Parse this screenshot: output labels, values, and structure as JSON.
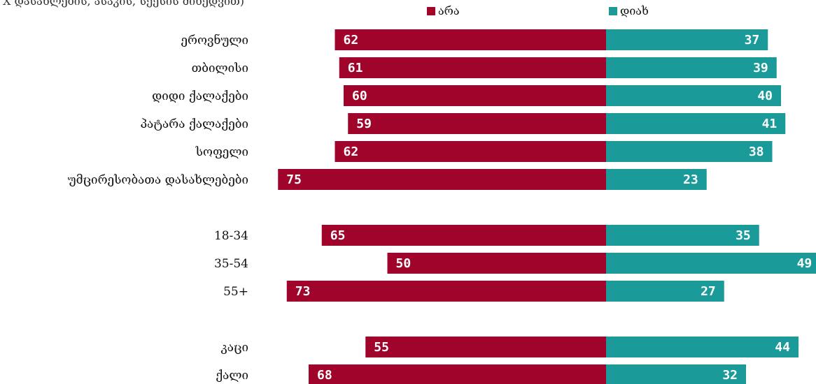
{
  "subtitle": "X დასახლების, ასაკის, სქესის მიხედვით)",
  "legend": {
    "no_label": "არა",
    "yes_label": "დიახ",
    "no_color": "#a0042a",
    "yes_color": "#1a9b9a"
  },
  "chart_data": {
    "type": "bar",
    "orientation": "horizontal-diverging",
    "categories": [
      "ეროვნული",
      "თბილისი",
      "დიდი ქალაქები",
      "პატარა ქალაქები",
      "სოფელი",
      "უმცირესობათა დასახლებები",
      "18-34",
      "35-54",
      "55+",
      "კაცი",
      "ქალი"
    ],
    "series": [
      {
        "name": "არა",
        "values": [
          62,
          61,
          60,
          59,
          62,
          75,
          65,
          50,
          73,
          55,
          68
        ]
      },
      {
        "name": "დიახ",
        "values": [
          37,
          39,
          40,
          41,
          38,
          23,
          35,
          49,
          27,
          44,
          32
        ]
      }
    ],
    "groups": [
      [
        "ეროვნული",
        "თბილისი",
        "დიდი ქალაქები",
        "პატარა ქალაქები",
        "სოფელი",
        "უმცირესობათა დასახლებები"
      ],
      [
        "18-34",
        "35-54",
        "55+"
      ],
      [
        "კაცი",
        "ქალი"
      ]
    ],
    "legend_position": "top"
  }
}
